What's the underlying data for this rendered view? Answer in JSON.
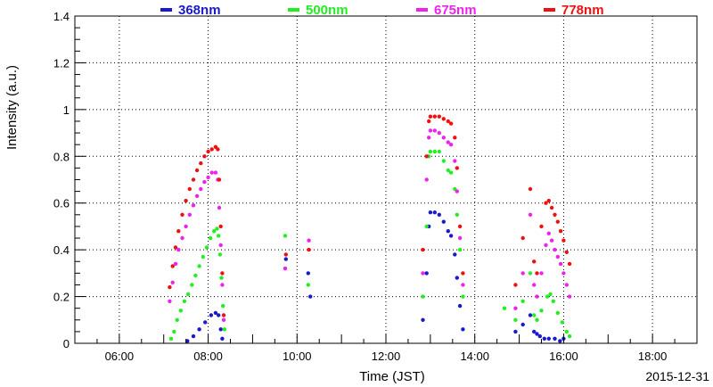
{
  "chart_data": {
    "type": "scatter",
    "xlabel": "Time (JST)",
    "ylabel": "Intensity (a.u.)",
    "date": "2015-12-31",
    "xlim": [
      "05:00",
      "19:00"
    ],
    "ylim": [
      0,
      1.4
    ],
    "x_ticks": [
      "06:00",
      "08:00",
      "10:00",
      "12:00",
      "14:00",
      "16:00",
      "18:00"
    ],
    "y_ticks": [
      "0",
      "0.2",
      "0.4",
      "0.6",
      "0.8",
      "1",
      "1.2",
      "1.4"
    ],
    "grid": true,
    "legend": "top",
    "series": [
      {
        "name": "368nm",
        "color": "#1a1acc",
        "points": [
          [
            "07:32",
            0.01
          ],
          [
            "07:40",
            0.03
          ],
          [
            "07:48",
            0.06
          ],
          [
            "07:56",
            0.09
          ],
          [
            "08:04",
            0.12
          ],
          [
            "08:10",
            0.13
          ],
          [
            "08:14",
            0.12
          ],
          [
            "08:17",
            0.06
          ],
          [
            "08:19",
            0.02
          ],
          [
            "09:45",
            0.36
          ],
          [
            "10:15",
            0.3
          ],
          [
            "10:18",
            0.2
          ],
          [
            "12:50",
            0.1
          ],
          [
            "12:55",
            0.3
          ],
          [
            "12:58",
            0.5
          ],
          [
            "13:00",
            0.56
          ],
          [
            "13:06",
            0.56
          ],
          [
            "13:12",
            0.55
          ],
          [
            "13:18",
            0.52
          ],
          [
            "13:24",
            0.48
          ],
          [
            "13:28",
            0.46
          ],
          [
            "13:33",
            0.38
          ],
          [
            "13:36",
            0.28
          ],
          [
            "13:40",
            0.16
          ],
          [
            "13:44",
            0.06
          ],
          [
            "14:55",
            0.05
          ],
          [
            "15:05",
            0.08
          ],
          [
            "15:15",
            0.12
          ],
          [
            "15:20",
            0.05
          ],
          [
            "15:24",
            0.04
          ],
          [
            "15:28",
            0.03
          ],
          [
            "15:34",
            0.02
          ],
          [
            "15:40",
            0.02
          ],
          [
            "15:48",
            0.02
          ],
          [
            "15:55",
            0.01
          ],
          [
            "16:00",
            0.02
          ]
        ]
      },
      {
        "name": "500nm",
        "color": "#22ee22",
        "points": [
          [
            "07:10",
            0.02
          ],
          [
            "07:14",
            0.05
          ],
          [
            "07:18",
            0.1
          ],
          [
            "07:23",
            0.14
          ],
          [
            "07:28",
            0.18
          ],
          [
            "07:33",
            0.21
          ],
          [
            "07:38",
            0.25
          ],
          [
            "07:43",
            0.29
          ],
          [
            "07:48",
            0.33
          ],
          [
            "07:53",
            0.37
          ],
          [
            "07:58",
            0.41
          ],
          [
            "08:03",
            0.45
          ],
          [
            "08:08",
            0.48
          ],
          [
            "08:12",
            0.49
          ],
          [
            "08:14",
            0.46
          ],
          [
            "08:16",
            0.38
          ],
          [
            "08:18",
            0.28
          ],
          [
            "08:20",
            0.16
          ],
          [
            "08:22",
            0.06
          ],
          [
            "09:44",
            0.46
          ],
          [
            "10:15",
            0.25
          ],
          [
            "12:50",
            0.2
          ],
          [
            "12:55",
            0.5
          ],
          [
            "12:58",
            0.8
          ],
          [
            "13:00",
            0.82
          ],
          [
            "13:06",
            0.82
          ],
          [
            "13:12",
            0.82
          ],
          [
            "13:18",
            0.78
          ],
          [
            "13:24",
            0.74
          ],
          [
            "13:28",
            0.73
          ],
          [
            "13:33",
            0.66
          ],
          [
            "13:36",
            0.55
          ],
          [
            "13:40",
            0.4
          ],
          [
            "13:44",
            0.2
          ],
          [
            "14:40",
            0.15
          ],
          [
            "14:55",
            0.1
          ],
          [
            "15:05",
            0.18
          ],
          [
            "15:15",
            0.3
          ],
          [
            "15:20",
            0.12
          ],
          [
            "15:24",
            0.1
          ],
          [
            "15:30",
            0.14
          ],
          [
            "15:38",
            0.2
          ],
          [
            "15:42",
            0.21
          ],
          [
            "15:46",
            0.18
          ],
          [
            "15:52",
            0.13
          ],
          [
            "15:58",
            0.09
          ],
          [
            "16:04",
            0.05
          ],
          [
            "16:08",
            0.03
          ]
        ]
      },
      {
        "name": "675nm",
        "color": "#ee22ee",
        "points": [
          [
            "07:08",
            0.18
          ],
          [
            "07:12",
            0.26
          ],
          [
            "07:16",
            0.34
          ],
          [
            "07:20",
            0.4
          ],
          [
            "07:25",
            0.45
          ],
          [
            "07:30",
            0.5
          ],
          [
            "07:35",
            0.55
          ],
          [
            "07:40",
            0.59
          ],
          [
            "07:45",
            0.63
          ],
          [
            "07:50",
            0.66
          ],
          [
            "07:55",
            0.69
          ],
          [
            "08:00",
            0.71
          ],
          [
            "08:05",
            0.73
          ],
          [
            "08:10",
            0.73
          ],
          [
            "08:13",
            0.7
          ],
          [
            "08:15",
            0.58
          ],
          [
            "08:17",
            0.42
          ],
          [
            "08:19",
            0.25
          ],
          [
            "08:21",
            0.1
          ],
          [
            "09:44",
            0.32
          ],
          [
            "10:16",
            0.44
          ],
          [
            "12:50",
            0.3
          ],
          [
            "12:55",
            0.7
          ],
          [
            "12:58",
            0.88
          ],
          [
            "13:00",
            0.91
          ],
          [
            "13:06",
            0.91
          ],
          [
            "13:12",
            0.9
          ],
          [
            "13:18",
            0.88
          ],
          [
            "13:24",
            0.86
          ],
          [
            "13:28",
            0.85
          ],
          [
            "13:33",
            0.78
          ],
          [
            "13:36",
            0.65
          ],
          [
            "13:40",
            0.45
          ],
          [
            "13:44",
            0.25
          ],
          [
            "14:55",
            0.15
          ],
          [
            "15:05",
            0.3
          ],
          [
            "15:15",
            0.55
          ],
          [
            "15:20",
            0.25
          ],
          [
            "15:24",
            0.2
          ],
          [
            "15:30",
            0.3
          ],
          [
            "15:36",
            0.42
          ],
          [
            "15:40",
            0.47
          ],
          [
            "15:44",
            0.44
          ],
          [
            "15:48",
            0.4
          ],
          [
            "15:52",
            0.37
          ],
          [
            "15:56",
            0.34
          ],
          [
            "16:00",
            0.3
          ],
          [
            "16:04",
            0.25
          ],
          [
            "16:08",
            0.2
          ]
        ]
      },
      {
        "name": "778nm",
        "color": "#ee1111",
        "points": [
          [
            "07:08",
            0.24
          ],
          [
            "07:12",
            0.33
          ],
          [
            "07:16",
            0.41
          ],
          [
            "07:20",
            0.48
          ],
          [
            "07:25",
            0.55
          ],
          [
            "07:30",
            0.61
          ],
          [
            "07:35",
            0.66
          ],
          [
            "07:40",
            0.7
          ],
          [
            "07:45",
            0.74
          ],
          [
            "07:50",
            0.77
          ],
          [
            "07:55",
            0.8
          ],
          [
            "08:00",
            0.82
          ],
          [
            "08:05",
            0.83
          ],
          [
            "08:10",
            0.84
          ],
          [
            "08:13",
            0.83
          ],
          [
            "08:15",
            0.7
          ],
          [
            "08:17",
            0.5
          ],
          [
            "08:19",
            0.3
          ],
          [
            "08:21",
            0.12
          ],
          [
            "09:45",
            0.38
          ],
          [
            "10:16",
            0.4
          ],
          [
            "12:50",
            0.4
          ],
          [
            "12:55",
            0.8
          ],
          [
            "12:58",
            0.95
          ],
          [
            "13:00",
            0.97
          ],
          [
            "13:06",
            0.97
          ],
          [
            "13:12",
            0.97
          ],
          [
            "13:18",
            0.96
          ],
          [
            "13:24",
            0.95
          ],
          [
            "13:28",
            0.94
          ],
          [
            "13:33",
            0.88
          ],
          [
            "13:36",
            0.75
          ],
          [
            "13:40",
            0.5
          ],
          [
            "13:44",
            0.3
          ],
          [
            "14:55",
            0.25
          ],
          [
            "15:05",
            0.45
          ],
          [
            "15:15",
            0.66
          ],
          [
            "15:20",
            0.35
          ],
          [
            "15:24",
            0.3
          ],
          [
            "15:30",
            0.5
          ],
          [
            "15:36",
            0.6
          ],
          [
            "15:40",
            0.61
          ],
          [
            "15:44",
            0.58
          ],
          [
            "15:48",
            0.55
          ],
          [
            "15:52",
            0.52
          ],
          [
            "15:56",
            0.48
          ],
          [
            "16:00",
            0.44
          ],
          [
            "16:04",
            0.39
          ],
          [
            "16:08",
            0.34
          ]
        ]
      }
    ]
  }
}
